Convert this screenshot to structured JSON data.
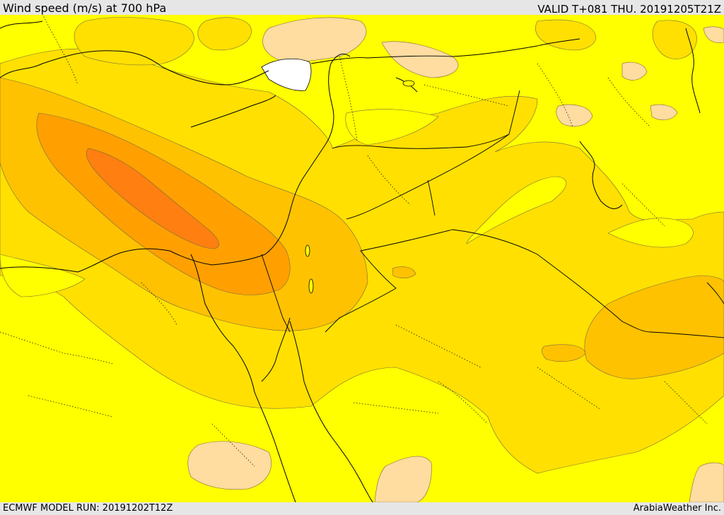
{
  "header": {
    "title": "Wind speed (m/s) at 700 hPa",
    "valid": "VALID T+081 THU. 20191205T21Z"
  },
  "footer": {
    "model_run": "ECMWF MODEL RUN: 20191202T12Z",
    "credit": "ArabiaWeather Inc."
  },
  "palette": {
    "background": "#ffff00",
    "level_1": "#ffe000",
    "level_2": "#ffc200",
    "level_3": "#ffa000",
    "level_4": "#ff7f10",
    "calm_low": "#ffdca0",
    "no_data": "#ffffff",
    "coastline": "#000000",
    "contour": "#7a6a40"
  },
  "map_layers": [
    "wind-speed-shading",
    "contour-lines",
    "coastlines",
    "country-borders",
    "province-borders"
  ]
}
